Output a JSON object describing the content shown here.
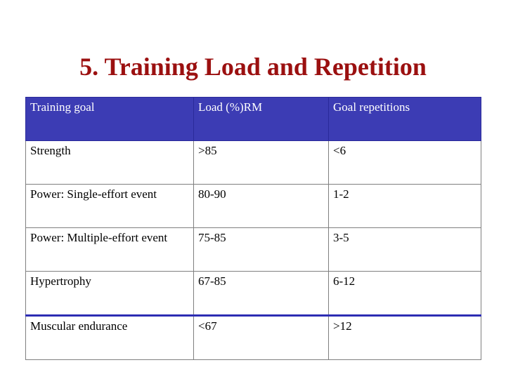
{
  "slide": {
    "title": "5. Training Load and Repetition"
  },
  "table": {
    "headers": [
      "Training goal",
      "Load (%)RM",
      "Goal repetitions"
    ],
    "rows": [
      [
        "Strength",
        ">85",
        "<6"
      ],
      [
        "Power: Single-effort event",
        "80-90",
        "1-2"
      ],
      [
        "Power: Multiple-effort event",
        "75-85",
        "3-5"
      ],
      [
        "Hypertrophy",
        "67-85",
        "6-12"
      ],
      [
        "Muscular endurance",
        "<67",
        ">12"
      ]
    ]
  },
  "colors": {
    "title": "#9b1010",
    "header_bg": "#3c3cb4",
    "header_text": "#ffffff",
    "grid_line": "#7f7f7f",
    "accent_line": "#2d2db3"
  }
}
